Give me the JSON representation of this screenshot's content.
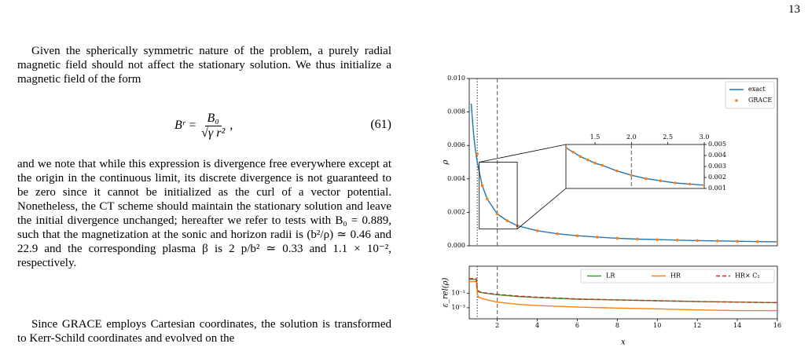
{
  "page_number": "13",
  "text": {
    "paragraphs": [
      "Given the spherically symmetric nature of the problem, a purely radial magnetic field should not affect the stationary solution. We thus initialize a magnetic field of the form",
      "and we note that while this expression is divergence free everywhere except at the origin in the continuous limit, its discrete divergence is not guaranteed to be zero since it cannot be initialized as the curl of a vector potential. Nonetheless, the CT scheme should maintain the stationary solution and leave the initial divergence unchanged; hereafter we refer to tests with B₀ = 0.889, such that the magnetization at the sonic and horizon radii is (b²/ρ) ≃ 0.46 and 22.9 and the corresponding plasma β is 2 p/b² ≃ 0.33 and 1.1 × 10⁻², respectively.",
      "Since GRACE employs Cartesian coordinates, the solution is transformed to Kerr-Schild coordinates and evolved on the"
    ],
    "equation": {
      "lhs": "Bʳ =",
      "numerator": "B₀",
      "denominator": "√γ r²",
      "trailing": ",",
      "number": "(61)"
    }
  },
  "chart_data": [
    {
      "type": "line",
      "ylabel": "ρ",
      "xlim": [
        0.6,
        16
      ],
      "ylim": [
        0,
        0.01
      ],
      "yticks": [
        {
          "value": 0,
          "label": "0.000"
        },
        {
          "value": 0.002,
          "label": "0.002"
        },
        {
          "value": 0.004,
          "label": "0.004"
        },
        {
          "value": 0.006,
          "label": "0.006"
        },
        {
          "value": 0.008,
          "label": "0.008"
        },
        {
          "value": 0.01,
          "label": "0.010"
        }
      ],
      "ytick_side": "left",
      "legend": "upper right",
      "vlines": [
        {
          "x": 1,
          "style": "dotted"
        },
        {
          "x": 2,
          "style": "dashed"
        }
      ],
      "x": [
        0.7,
        0.8,
        0.9,
        1,
        1.25,
        1.5,
        2,
        2.5,
        3,
        4,
        5,
        6,
        7,
        8,
        9,
        10,
        11,
        12,
        13,
        14,
        15,
        16
      ],
      "series": [
        {
          "name": "exact",
          "color": "#1f77b4",
          "style": "solid",
          "values": [
            0.0085,
            0.0069,
            0.0058,
            0.005,
            0.0036,
            0.0028,
            0.0019,
            0.0015,
            0.0012,
            0.0009,
            0.00072,
            0.0006,
            0.00052,
            0.00045,
            0.0004,
            0.00037,
            0.00034,
            0.00031,
            0.00029,
            0.00027,
            0.00025,
            0.00024
          ]
        },
        {
          "name": "GRACE",
          "color": "#ff7f0e",
          "style": "dots",
          "values": [
            null,
            null,
            null,
            0.0055,
            0.0036,
            0.0028,
            0.0019,
            0.0015,
            0.0012,
            0.0009,
            0.00072,
            0.0006,
            0.00052,
            0.00045,
            0.0004,
            0.00037,
            0.00034,
            0.00031,
            0.00029,
            0.00027,
            0.00025,
            0.00024
          ]
        }
      ]
    },
    {
      "type": "line",
      "xlim": [
        1.1,
        3
      ],
      "ylim": [
        0.001,
        0.005
      ],
      "xticks": [
        1.5,
        {
          "value": 2,
          "label": "2.0"
        },
        2.5,
        {
          "value": 3,
          "label": "3.0"
        }
      ],
      "xtick_side": "top",
      "yticks": [
        0.001,
        0.002,
        0.003,
        0.004,
        0.005
      ],
      "ytick_side": "right",
      "vlines": [
        {
          "x": 2,
          "style": "dashed"
        }
      ],
      "x": [
        1.1,
        1.2,
        1.3,
        1.4,
        1.5,
        1.6,
        1.8,
        2,
        2.2,
        2.4,
        2.6,
        2.8,
        3
      ],
      "series": [
        {
          "color": "#1f77b4",
          "style": "solid",
          "values": [
            0.0047,
            0.0043,
            0.0039,
            0.0036,
            0.0033,
            0.0031,
            0.0026,
            0.0022,
            0.0019,
            0.0017,
            0.0015,
            0.0014,
            0.0013
          ]
        },
        {
          "color": "#ff7f0e",
          "style": "dots",
          "values": [
            0.0047,
            0.0043,
            0.0039,
            0.0036,
            0.0033,
            0.0031,
            0.0026,
            0.0022,
            0.0019,
            0.0017,
            0.0015,
            0.0014,
            0.0013
          ]
        }
      ]
    },
    {
      "type": "line",
      "ylabel": "ε_rel(ρ)",
      "xlabel": "x",
      "xlim": [
        0.6,
        16
      ],
      "ylim": [
        3e-05,
        500
      ],
      "yscale": "log",
      "xticks": [
        2,
        4,
        6,
        8,
        10,
        12,
        14,
        16
      ],
      "xtick_side": "bottom",
      "yticks": [
        {
          "value": 0.1,
          "label": "10⁻¹"
        },
        {
          "value": 0.001,
          "label": "10⁻³"
        }
      ],
      "ytick_side": "left",
      "legend": "upper right",
      "vlines": [
        {
          "x": 1,
          "style": "dotted"
        },
        {
          "x": 2,
          "style": "dashed"
        }
      ],
      "x": [
        0.6,
        0.8,
        0.95,
        1,
        1.05,
        1.2,
        1.5,
        2,
        3,
        4,
        6,
        8,
        10,
        12,
        14,
        16
      ],
      "series": [
        {
          "name": "LR",
          "color": "#2ca02c",
          "style": "solid",
          "values": [
            8,
            8,
            8,
            0.3,
            0.15,
            0.12,
            0.09,
            0.06,
            0.035,
            0.025,
            0.015,
            0.012,
            0.009,
            0.007,
            0.006,
            0.005
          ]
        },
        {
          "name": "HR",
          "color": "#ff7f0e",
          "style": "solid",
          "values": [
            4,
            4,
            4,
            0.1,
            0.03,
            0.02,
            0.012,
            0.006,
            0.003,
            0.002,
            0.0012,
            0.0009,
            0.0007,
            0.0005,
            0.0004,
            0.0004
          ]
        },
        {
          "name": "HR× C₂",
          "color": "#d62728",
          "style": "dashed",
          "values": [
            10,
            10,
            10,
            0.4,
            0.2,
            0.13,
            0.1,
            0.07,
            0.04,
            0.028,
            0.016,
            0.012,
            0.009,
            0.007,
            0.006,
            0.005
          ]
        }
      ]
    }
  ]
}
